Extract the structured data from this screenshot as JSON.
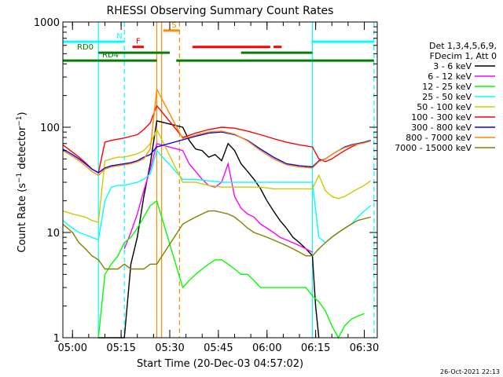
{
  "chart_data": {
    "type": "line",
    "title": "RHESSI Observing Summary Count Rates",
    "xlabel": "Start Time (20-Dec-03 04:57:02)",
    "ylabel": "Count Rate (s⁻¹ detector⁻¹)",
    "ylabel_parts": {
      "pre": "Count Rate (s",
      "exp1": "−1",
      "mid": " detector",
      "exp2": "−1",
      "post": ")"
    },
    "yscale": "log",
    "xlim": [
      "04:57:02",
      "06:34:00"
    ],
    "ylim": [
      1,
      1000
    ],
    "x_ticks": [
      "05:00",
      "05:15",
      "05:30",
      "05:45",
      "06:00",
      "06:15",
      "06:30"
    ],
    "y_ticks": [
      "1",
      "10",
      "100",
      "1000"
    ],
    "footer_date": "26-Oct-2021 22:13",
    "legend_header": [
      "Det 1,3,4,5,6,9,",
      "FDecim 1, Att 0"
    ],
    "vertical_lines": [
      {
        "t": "05:08:00",
        "color": "#00ffff",
        "style": "solid"
      },
      {
        "t": "05:16:00",
        "color": "#00ffff",
        "style": "dashed"
      },
      {
        "t": "05:26:00",
        "color": "#ff8c00",
        "style": "solid"
      },
      {
        "t": "05:27:30",
        "color": "#ff8c00",
        "style": "solid"
      },
      {
        "t": "05:33:00",
        "color": "#ff8c00",
        "style": "dashed"
      },
      {
        "t": "06:14:00",
        "color": "#00ffff",
        "style": "solid"
      },
      {
        "t": "06:33:00",
        "color": "#00ffff",
        "style": "dashed"
      }
    ],
    "flag_bars": [
      {
        "label": "N",
        "color": "#00ffff",
        "y": 650,
        "segments": [
          [
            "04:57:02",
            "05:16:00"
          ],
          [
            "06:14:00",
            "06:33:00"
          ]
        ]
      },
      {
        "label": "S",
        "color": "#ff8c00",
        "y": 830,
        "segments": [
          [
            "05:28:00",
            "05:33:00"
          ]
        ]
      },
      {
        "label": "F",
        "color": "#ff0000",
        "y": 580,
        "segments": [
          [
            "05:18:30",
            "05:22:00"
          ],
          [
            "05:37:00",
            "06:01:00"
          ],
          [
            "06:02:00",
            "06:04:30"
          ]
        ]
      },
      {
        "label": "RD0",
        "color": "#008000",
        "y": 510,
        "segments": [
          [
            "05:08:00",
            "05:30:00"
          ],
          [
            "05:52:00",
            "06:14:00"
          ]
        ]
      },
      {
        "label": "RD4",
        "color": "#008000",
        "y": 430,
        "segments": [
          [
            "04:57:02",
            "05:26:00"
          ],
          [
            "05:32:00",
            "06:14:00"
          ],
          [
            "06:14:00",
            "06:33:00"
          ]
        ]
      }
    ],
    "series": [
      {
        "name": "3 - 6 keV",
        "color": "#000000",
        "x": [
          "05:08",
          "05:10",
          "05:12",
          "05:14",
          "05:16",
          "05:18",
          "05:20",
          "05:22",
          "05:24",
          "05:26",
          "05:34",
          "05:36",
          "05:38",
          "05:40",
          "05:42",
          "05:44",
          "05:46",
          "05:48",
          "05:50",
          "05:52",
          "05:54",
          "05:56",
          "05:58",
          "06:00",
          "06:02",
          "06:04",
          "06:06",
          "06:08",
          "06:10",
          "06:12",
          "06:14",
          "06:15",
          "06:16"
        ],
        "y": [
          1,
          1,
          1,
          1,
          1,
          5,
          9,
          22,
          45,
          115,
          100,
          75,
          62,
          60,
          52,
          55,
          48,
          70,
          60,
          45,
          38,
          32,
          26,
          20,
          16,
          13,
          11,
          9,
          8,
          7,
          6,
          2,
          1
        ]
      },
      {
        "name": "6 - 12 keV",
        "color": "#ff00ff",
        "x": [
          "05:16",
          "05:18",
          "05:20",
          "05:22",
          "05:24",
          "05:26",
          "05:34",
          "05:36",
          "05:38",
          "05:40",
          "05:42",
          "05:44",
          "05:46",
          "05:48",
          "05:50",
          "05:52",
          "05:54",
          "05:56",
          "05:58",
          "06:00",
          "06:02",
          "06:04",
          "06:06",
          "06:08",
          "06:10",
          "06:12",
          "06:14"
        ],
        "y": [
          7,
          10,
          15,
          25,
          40,
          70,
          60,
          45,
          38,
          32,
          28,
          27,
          30,
          45,
          22,
          17,
          15,
          14,
          12,
          11,
          10,
          9,
          8.5,
          8,
          7.5,
          7,
          6.5
        ]
      },
      {
        "name": "12 - 25 keV",
        "color": "#00ff00",
        "x": [
          "05:08",
          "05:10",
          "05:12",
          "05:14",
          "05:16",
          "05:18",
          "05:20",
          "05:22",
          "05:24",
          "05:26",
          "05:34",
          "05:36",
          "05:38",
          "05:40",
          "05:42",
          "05:44",
          "05:46",
          "05:48",
          "05:50",
          "05:52",
          "05:54",
          "05:56",
          "05:58",
          "06:00",
          "06:02",
          "06:04",
          "06:06",
          "06:08",
          "06:10",
          "06:12",
          "06:14",
          "06:16",
          "06:18",
          "06:20",
          "06:22",
          "06:24",
          "06:26",
          "06:28",
          "06:30"
        ],
        "y": [
          1,
          4,
          5,
          6,
          8,
          9,
          11,
          14,
          18,
          20,
          3,
          3.5,
          4,
          4.5,
          5,
          5.5,
          5.5,
          5,
          4.5,
          4,
          4,
          3.5,
          3,
          3,
          3,
          3,
          3,
          3,
          3,
          3,
          2.5,
          2.2,
          1.8,
          1.3,
          1,
          1.3,
          1.5,
          1.6,
          1.7
        ]
      },
      {
        "name": "25 - 50 keV",
        "color": "#00ffff",
        "x": [
          "04:57",
          "05:00",
          "05:02",
          "05:04",
          "05:06",
          "05:08",
          "05:10",
          "05:12",
          "05:14",
          "05:16",
          "05:18",
          "05:20",
          "05:22",
          "05:24",
          "05:26",
          "05:34",
          "05:38",
          "05:42",
          "05:46",
          "05:50",
          "05:54",
          "05:58",
          "06:02",
          "06:06",
          "06:10",
          "06:14",
          "06:16",
          "06:18",
          "06:20",
          "06:22",
          "06:24",
          "06:26",
          "06:28",
          "06:30",
          "06:32"
        ],
        "y": [
          13,
          11,
          10,
          9.5,
          9,
          8.5,
          20,
          27,
          28,
          28,
          29,
          30,
          32,
          36,
          60,
          32,
          32,
          31,
          30,
          30,
          30,
          30,
          30,
          30,
          30,
          30,
          9,
          8,
          9,
          10,
          11,
          12,
          14,
          16,
          18
        ]
      },
      {
        "name": "50 - 100 keV",
        "color": "#cccc00",
        "x": [
          "04:57",
          "05:00",
          "05:02",
          "05:04",
          "05:06",
          "05:08",
          "05:10",
          "05:12",
          "05:14",
          "05:16",
          "05:18",
          "05:20",
          "05:22",
          "05:24",
          "05:26",
          "05:34",
          "05:38",
          "05:42",
          "05:46",
          "05:50",
          "05:54",
          "05:58",
          "06:02",
          "06:06",
          "06:10",
          "06:14",
          "06:16",
          "06:18",
          "06:20",
          "06:22",
          "06:24",
          "06:26",
          "06:28",
          "06:30",
          "06:32"
        ],
        "y": [
          16,
          15,
          14.5,
          14,
          13,
          12.5,
          48,
          50,
          52,
          52,
          54,
          56,
          60,
          70,
          95,
          30,
          30,
          28,
          27,
          27,
          27,
          27,
          26,
          26,
          26,
          26,
          35,
          25,
          22,
          21,
          22,
          24,
          26,
          28,
          31
        ]
      },
      {
        "name": "100 - 300 keV",
        "color": "#ff0000",
        "x": [
          "04:57",
          "05:00",
          "05:02",
          "05:04",
          "05:06",
          "05:08",
          "05:10",
          "05:12",
          "05:14",
          "05:16",
          "05:18",
          "05:20",
          "05:22",
          "05:24",
          "05:26",
          "05:34",
          "05:38",
          "05:42",
          "05:46",
          "05:50",
          "05:54",
          "05:58",
          "06:02",
          "06:06",
          "06:10",
          "06:14",
          "06:16",
          "06:18",
          "06:20",
          "06:22",
          "06:24",
          "06:26",
          "06:28",
          "06:30",
          "06:32"
        ],
        "y": [
          68,
          58,
          52,
          46,
          40,
          37,
          72,
          75,
          77,
          79,
          82,
          85,
          95,
          110,
          160,
          80,
          88,
          95,
          100,
          98,
          92,
          85,
          78,
          72,
          68,
          65,
          50,
          47,
          50,
          55,
          60,
          65,
          69,
          72,
          74
        ]
      },
      {
        "name": "300 - 800 keV",
        "color": "#0000ff",
        "x": [
          "04:57",
          "05:00",
          "05:02",
          "05:04",
          "05:06",
          "05:08",
          "05:10",
          "05:12",
          "05:14",
          "05:16",
          "05:18",
          "05:20",
          "05:22",
          "05:24",
          "05:26",
          "05:34",
          "05:38",
          "05:42",
          "05:46",
          "05:50",
          "05:54",
          "05:58",
          "06:02",
          "06:06",
          "06:10",
          "06:14",
          "06:16",
          "06:18",
          "06:20",
          "06:22",
          "06:24",
          "06:26",
          "06:28",
          "06:30",
          "06:32"
        ],
        "y": [
          62,
          55,
          50,
          45,
          40,
          37,
          41,
          43,
          44,
          45,
          46,
          48,
          52,
          55,
          65,
          76,
          82,
          88,
          90,
          85,
          75,
          62,
          52,
          45,
          43,
          42,
          48,
          50,
          55,
          60,
          65,
          68,
          70,
          72,
          75
        ]
      },
      {
        "name": "800 - 7000 keV",
        "color": "#ff8c00",
        "x": [
          "04:57",
          "05:00",
          "05:02",
          "05:04",
          "05:06",
          "05:08",
          "05:10",
          "05:12",
          "05:14",
          "05:16",
          "05:18",
          "05:20",
          "05:22",
          "05:24",
          "05:26",
          "05:34",
          "05:38",
          "05:42",
          "05:46",
          "05:50",
          "05:54",
          "05:58",
          "06:02",
          "06:06",
          "06:10",
          "06:14",
          "06:16",
          "06:18",
          "06:20",
          "06:22",
          "06:24",
          "06:26",
          "06:28",
          "06:30",
          "06:32"
        ],
        "y": [
          60,
          53,
          48,
          43,
          38,
          35,
          40,
          42,
          43,
          44,
          45,
          47,
          50,
          62,
          230,
          78,
          84,
          90,
          92,
          86,
          74,
          60,
          50,
          44,
          42,
          41,
          47,
          50,
          55,
          60,
          64,
          67,
          69,
          71,
          74
        ]
      },
      {
        "name": "7000 - 15000 keV",
        "color": "#808000",
        "x": [
          "04:57",
          "05:00",
          "05:02",
          "05:04",
          "05:06",
          "05:08",
          "05:10",
          "05:12",
          "05:14",
          "05:16",
          "05:18",
          "05:20",
          "05:22",
          "05:24",
          "05:26",
          "05:34",
          "05:36",
          "05:38",
          "05:40",
          "05:42",
          "05:44",
          "05:46",
          "05:48",
          "05:50",
          "05:52",
          "05:54",
          "05:56",
          "05:58",
          "06:00",
          "06:02",
          "06:04",
          "06:06",
          "06:08",
          "06:10",
          "06:12",
          "06:14",
          "06:16",
          "06:18",
          "06:20",
          "06:22",
          "06:24",
          "06:26",
          "06:28",
          "06:30",
          "06:32"
        ],
        "y": [
          12,
          10,
          8,
          7,
          6,
          5.5,
          4.5,
          4.5,
          4.5,
          5,
          4.5,
          4.5,
          4.5,
          5,
          5,
          12,
          13,
          14,
          15,
          16,
          16,
          15.5,
          15,
          14,
          12.5,
          11,
          10,
          9.5,
          9,
          8.5,
          8,
          7.5,
          7,
          6.5,
          6,
          6,
          7,
          8,
          9,
          10,
          11,
          12,
          13,
          13.5,
          14
        ]
      }
    ]
  }
}
